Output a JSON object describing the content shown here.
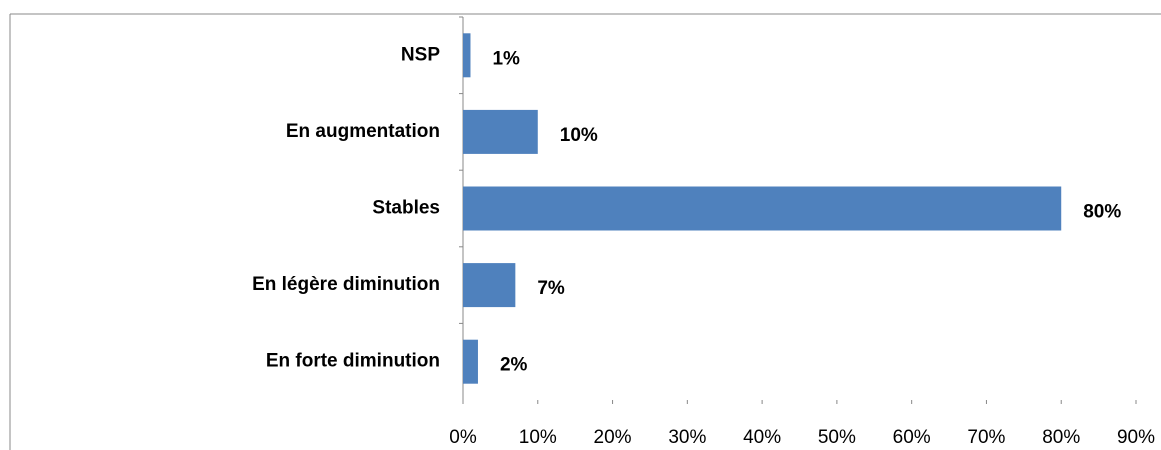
{
  "chart_data": {
    "type": "bar",
    "orientation": "horizontal",
    "categories": [
      "NSP",
      "En augmentation",
      "Stables",
      "En légère diminution",
      "En forte diminution"
    ],
    "values": [
      1,
      10,
      80,
      7,
      2
    ],
    "value_labels": [
      "1%",
      "10%",
      "80%",
      "7%",
      "2%"
    ],
    "color": "#4f81bd",
    "xlim": [
      0,
      90
    ],
    "xticks": [
      {
        "value": 0,
        "label": "0%"
      },
      {
        "value": 10,
        "label": "10%"
      },
      {
        "value": 20,
        "label": "20%"
      },
      {
        "value": 30,
        "label": "30%"
      },
      {
        "value": 40,
        "label": "40%"
      },
      {
        "value": 50,
        "label": "50%"
      },
      {
        "value": 60,
        "label": "60%"
      },
      {
        "value": 70,
        "label": "70%"
      },
      {
        "value": 80,
        "label": "80%"
      },
      {
        "value": 90,
        "label": "90%"
      }
    ],
    "grid": false
  }
}
